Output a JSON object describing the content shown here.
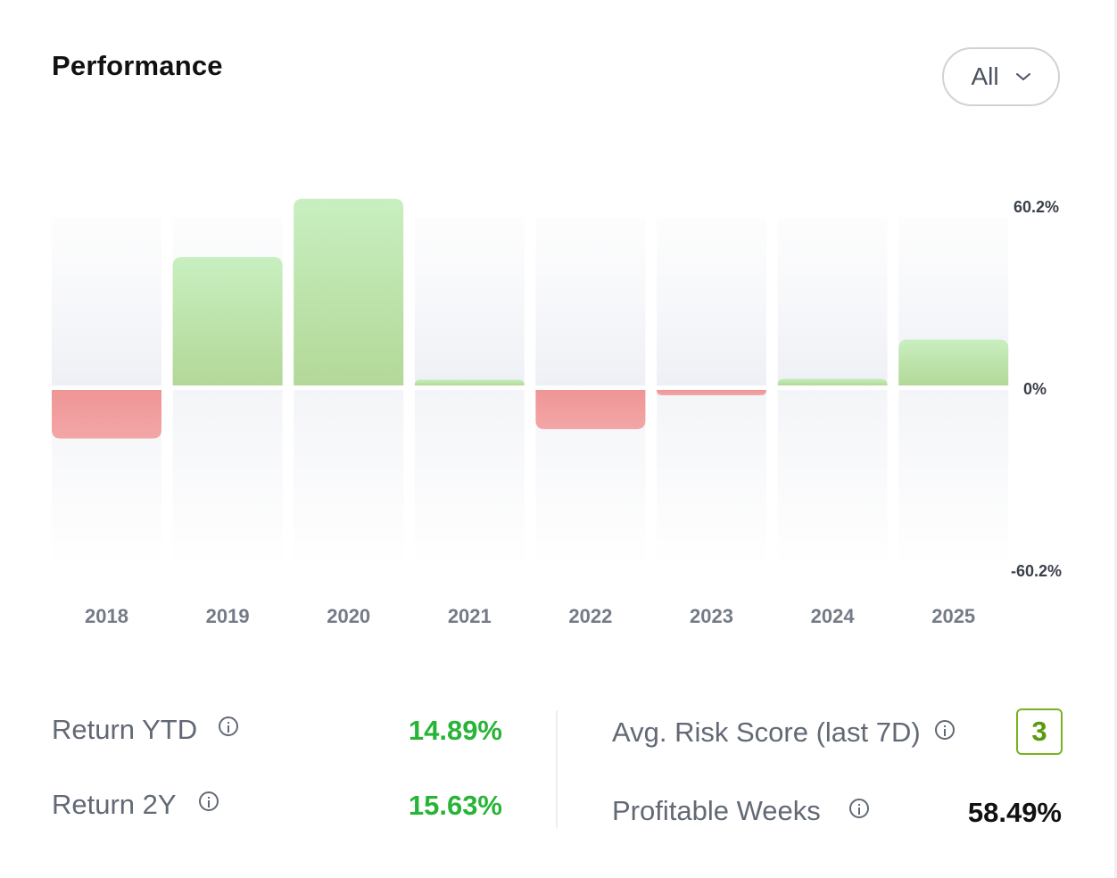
{
  "header": {
    "title": "Performance",
    "period_selected": "All"
  },
  "chart_data": {
    "type": "bar",
    "categories": [
      "2018",
      "2019",
      "2020",
      "2021",
      "2022",
      "2023",
      "2024",
      "2025"
    ],
    "values": [
      -16.1,
      43.3,
      63.0,
      2.0,
      -13.0,
      -1.5,
      2.3,
      15.5
    ],
    "ylim": [
      -60.2,
      60.2
    ],
    "yticks": [
      "60.2%",
      "0%",
      "-60.2%"
    ],
    "colors": {
      "positive": "#b9e0a3",
      "negative": "#ef9a9a",
      "track": "#f4f5f8"
    }
  },
  "stats": {
    "return_ytd": {
      "label": "Return YTD",
      "value": "14.89%"
    },
    "return_2y": {
      "label": "Return 2Y",
      "value": "15.63%"
    },
    "avg_risk": {
      "label": "Avg. Risk Score (last 7D)",
      "value": "3"
    },
    "profitable_weeks": {
      "label": "Profitable Weeks",
      "value": "58.49%"
    }
  }
}
